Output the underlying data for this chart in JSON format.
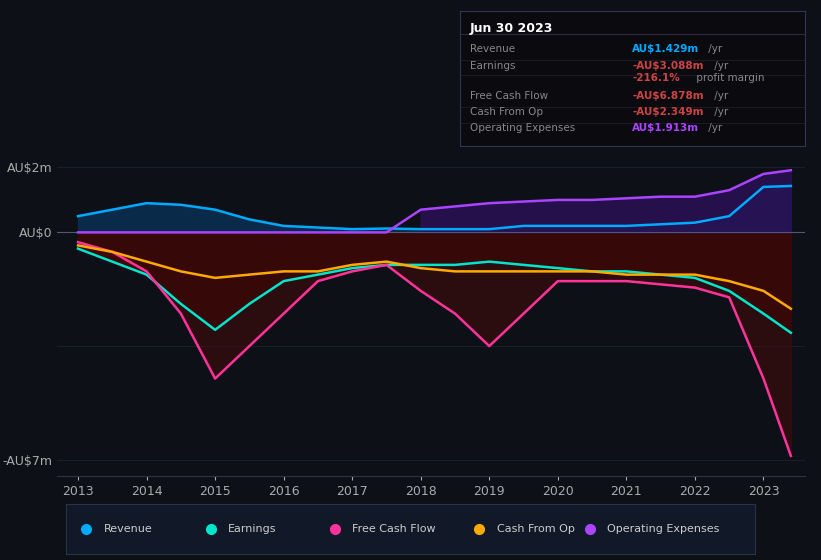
{
  "bg_color": "#0d1117",
  "plot_bg_color": "#0d1117",
  "years": [
    2013,
    2013.5,
    2014,
    2014.5,
    2015,
    2015.5,
    2016,
    2016.5,
    2017,
    2017.5,
    2018,
    2018.5,
    2019,
    2019.5,
    2020,
    2020.5,
    2021,
    2021.5,
    2022,
    2022.5,
    2023,
    2023.4
  ],
  "revenue": [
    0.5,
    0.7,
    0.9,
    0.85,
    0.7,
    0.4,
    0.2,
    0.15,
    0.1,
    0.12,
    0.1,
    0.1,
    0.1,
    0.2,
    0.2,
    0.2,
    0.2,
    0.25,
    0.3,
    0.5,
    1.4,
    1.43
  ],
  "earnings": [
    -0.5,
    -0.9,
    -1.3,
    -2.2,
    -3.0,
    -2.2,
    -1.5,
    -1.3,
    -1.1,
    -1.0,
    -1.0,
    -1.0,
    -0.9,
    -1.0,
    -1.1,
    -1.2,
    -1.2,
    -1.3,
    -1.4,
    -1.8,
    -2.5,
    -3.09
  ],
  "free_cash_flow": [
    -0.3,
    -0.6,
    -1.2,
    -2.5,
    -4.5,
    -3.5,
    -2.5,
    -1.5,
    -1.2,
    -1.0,
    -1.8,
    -2.5,
    -3.5,
    -2.5,
    -1.5,
    -1.5,
    -1.5,
    -1.6,
    -1.7,
    -2.0,
    -4.5,
    -6.88
  ],
  "cash_from_op": [
    -0.4,
    -0.6,
    -0.9,
    -1.2,
    -1.4,
    -1.3,
    -1.2,
    -1.2,
    -1.0,
    -0.9,
    -1.1,
    -1.2,
    -1.2,
    -1.2,
    -1.2,
    -1.2,
    -1.3,
    -1.3,
    -1.3,
    -1.5,
    -1.8,
    -2.35
  ],
  "operating_expenses": [
    0.0,
    0.0,
    0.0,
    0.0,
    0.0,
    0.0,
    0.0,
    0.0,
    0.0,
    0.0,
    0.7,
    0.8,
    0.9,
    0.95,
    1.0,
    1.0,
    1.05,
    1.1,
    1.1,
    1.3,
    1.8,
    1.913
  ],
  "ylim": [
    -7.5,
    2.5
  ],
  "xticks": [
    2013,
    2014,
    2015,
    2016,
    2017,
    2018,
    2019,
    2020,
    2021,
    2022,
    2023
  ],
  "revenue_color": "#00aaff",
  "revenue_fill": "#0a2a4a",
  "earnings_color": "#00e5cc",
  "free_cash_flow_color": "#ff3399",
  "cash_from_op_color": "#ffaa00",
  "op_expenses_color": "#aa44ff",
  "zero_line_color": "#555577",
  "grid_color": "#1e2535",
  "legend_bg": "#111827",
  "legend_border": "#2a3345",
  "box_bg": "#0a0a0f",
  "box_border": "#333355",
  "box_date": "Jun 30 2023",
  "box_rows": [
    {
      "label": "Revenue",
      "value": "AU$1.429m",
      "value_color": "#00aaff",
      "suffix": " /yr"
    },
    {
      "label": "Earnings",
      "value": "-AU$3.088m",
      "value_color": "#cc4444",
      "suffix": " /yr"
    },
    {
      "label": "",
      "value": "-216.1%",
      "value_color": "#cc4444",
      "suffix": " profit margin"
    },
    {
      "label": "Free Cash Flow",
      "value": "-AU$6.878m",
      "value_color": "#cc4444",
      "suffix": " /yr"
    },
    {
      "label": "Cash From Op",
      "value": "-AU$2.349m",
      "value_color": "#cc4444",
      "suffix": " /yr"
    },
    {
      "label": "Operating Expenses",
      "value": "AU$1.913m",
      "value_color": "#aa44ff",
      "suffix": " /yr"
    }
  ],
  "legend_items": [
    {
      "color": "#00aaff",
      "label": "Revenue"
    },
    {
      "color": "#00e5cc",
      "label": "Earnings"
    },
    {
      "color": "#ff3399",
      "label": "Free Cash Flow"
    },
    {
      "color": "#ffaa00",
      "label": "Cash From Op"
    },
    {
      "color": "#aa44ff",
      "label": "Operating Expenses"
    }
  ]
}
